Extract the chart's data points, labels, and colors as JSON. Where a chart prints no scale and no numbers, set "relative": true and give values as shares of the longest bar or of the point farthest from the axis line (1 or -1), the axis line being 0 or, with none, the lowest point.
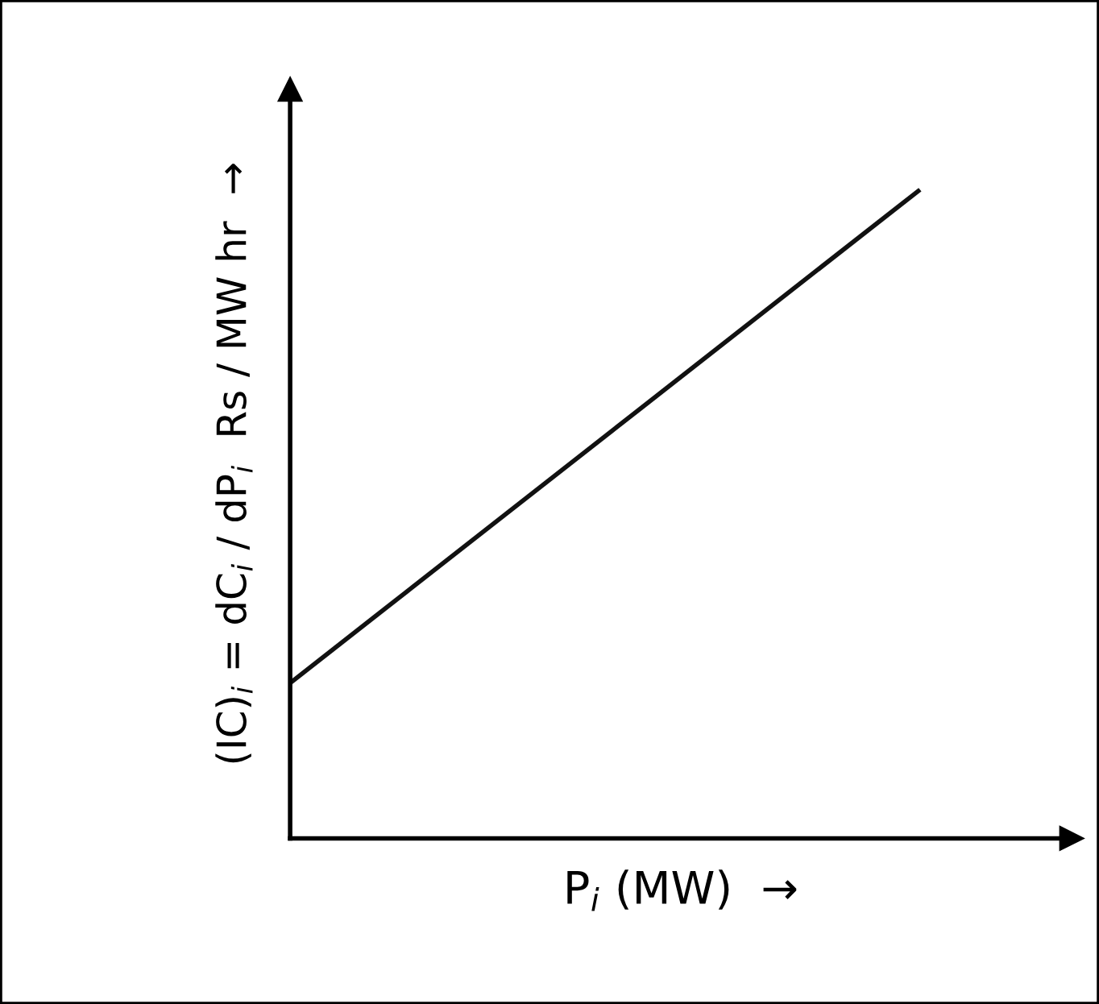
{
  "chart_data": {
    "type": "line",
    "relative": true,
    "xlabel": "P$_{i}$ (MW)  →",
    "ylabel": "(IC)$_{i}$ = dC$_{i}$ / dP$_{i}$  Rs / MW hr  →",
    "categories": [
      null,
      null
    ],
    "series": [
      {
        "color": "#111111",
        "values": [
          0.24,
          1
        ]
      }
    ],
    "marker": "none",
    "line_style": "solid"
  }
}
